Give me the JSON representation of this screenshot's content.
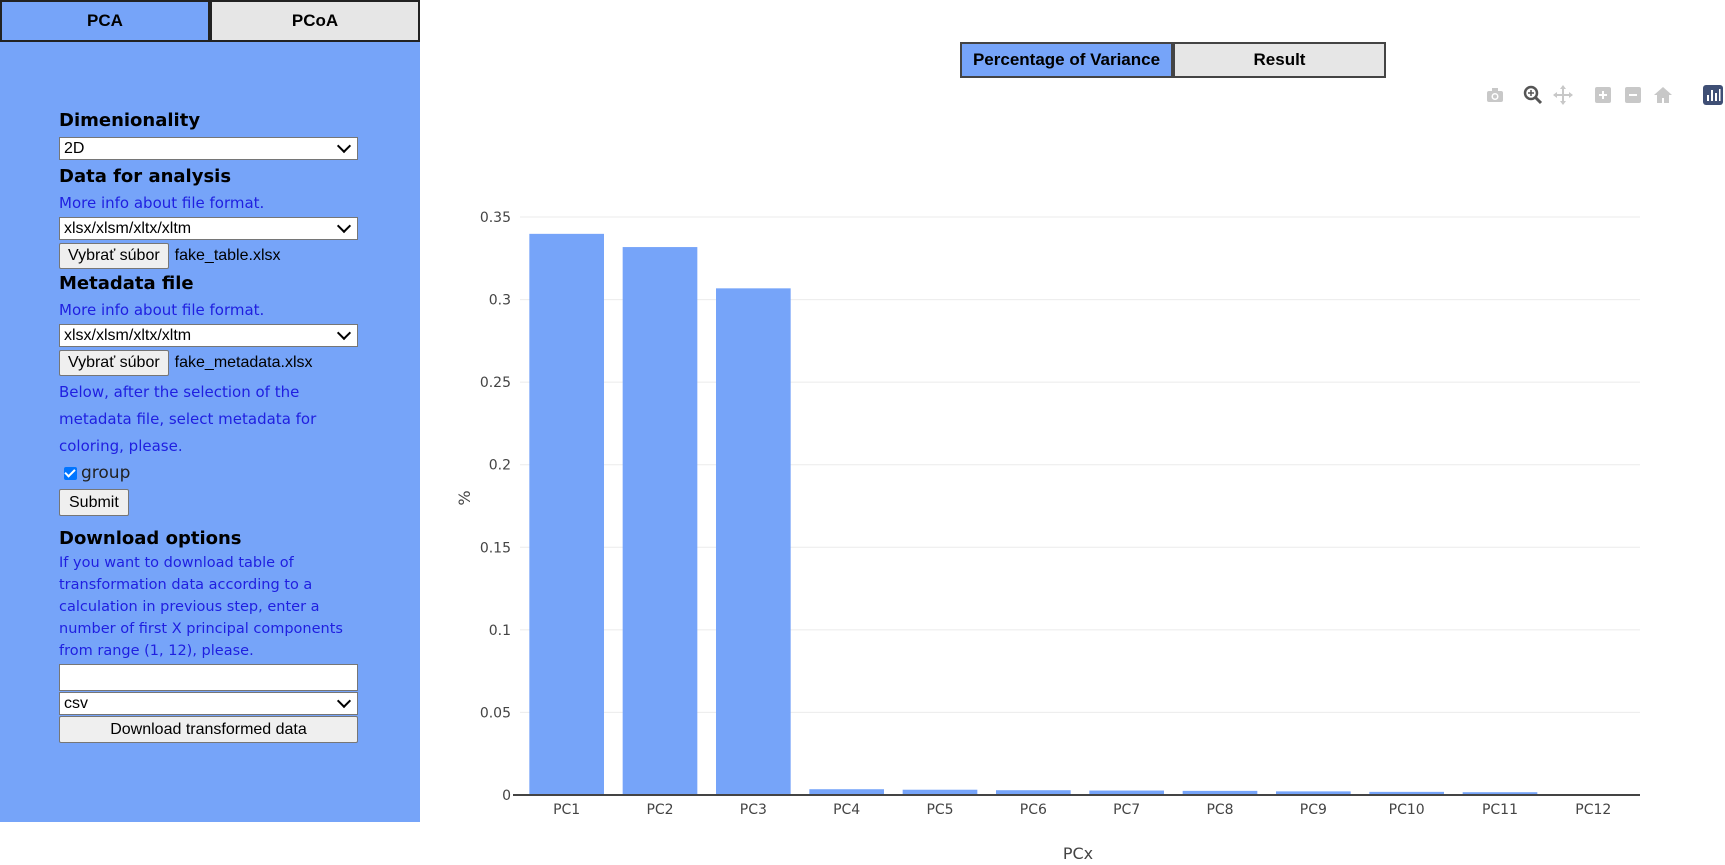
{
  "left_tabs": [
    {
      "label": "PCA",
      "active": true
    },
    {
      "label": "PCoA",
      "active": false
    }
  ],
  "sidebar": {
    "dimensionality": {
      "heading": "Dimenionality",
      "selected": "2D"
    },
    "data_analysis": {
      "heading": "Data for analysis",
      "info_link": "More info about file format.",
      "format_selected": "xlsx/xlsm/xltx/xltm",
      "file_button": "Vybrať súbor",
      "file_name": "fake_table.xlsx"
    },
    "metadata": {
      "heading": "Metadata file",
      "info_link": "More info about file format.",
      "format_selected": "xlsx/xlsm/xltx/xltm",
      "file_button": "Vybrať súbor",
      "file_name": "fake_metadata.xlsx",
      "note": "Below, after the selection of the metadata file, select metadata for coloring, please.",
      "checkbox_label": "group",
      "checkbox_checked": true
    },
    "submit_label": "Submit",
    "download": {
      "heading": "Download options",
      "info": "If you want to download table of transformation data according to a calculation in previous step, enter a number of first X principal components from range (1, 12), please.",
      "input_value": "",
      "format_selected": "csv",
      "button_label": "Download transformed data"
    }
  },
  "right_tabs": [
    {
      "label": "Percentage of Variance",
      "active": true
    },
    {
      "label": "Result",
      "active": false
    }
  ],
  "modebar": {
    "icons": [
      "camera-icon",
      "zoom-icon",
      "pan-icon",
      "zoom-in-icon",
      "zoom-out-icon",
      "home-icon",
      "plotly-logo-icon"
    ]
  },
  "chart_data": {
    "type": "bar",
    "categories": [
      "PC1",
      "PC2",
      "PC3",
      "PC4",
      "PC5",
      "PC6",
      "PC7",
      "PC8",
      "PC9",
      "PC10",
      "PC11",
      "PC12"
    ],
    "values": [
      0.3398,
      0.3318,
      0.3068,
      0.0035,
      0.0032,
      0.0029,
      0.0027,
      0.0025,
      0.0022,
      0.0019,
      0.0017,
      0.0
    ],
    "title": "",
    "xlabel": "PCx",
    "ylabel": "%",
    "ylim": [
      0,
      0.35
    ],
    "yticks": [
      0,
      0.05,
      0.1,
      0.15,
      0.2,
      0.25,
      0.3,
      0.35
    ],
    "ytick_labels": [
      "0",
      "0.05",
      "0.1",
      "0.15",
      "0.2",
      "0.25",
      "0.3",
      "0.35"
    ],
    "bar_color": "#76a4f9",
    "grid": true
  },
  "colors": {
    "accent": "#76a4f9",
    "link_text": "#1f1fe0"
  }
}
